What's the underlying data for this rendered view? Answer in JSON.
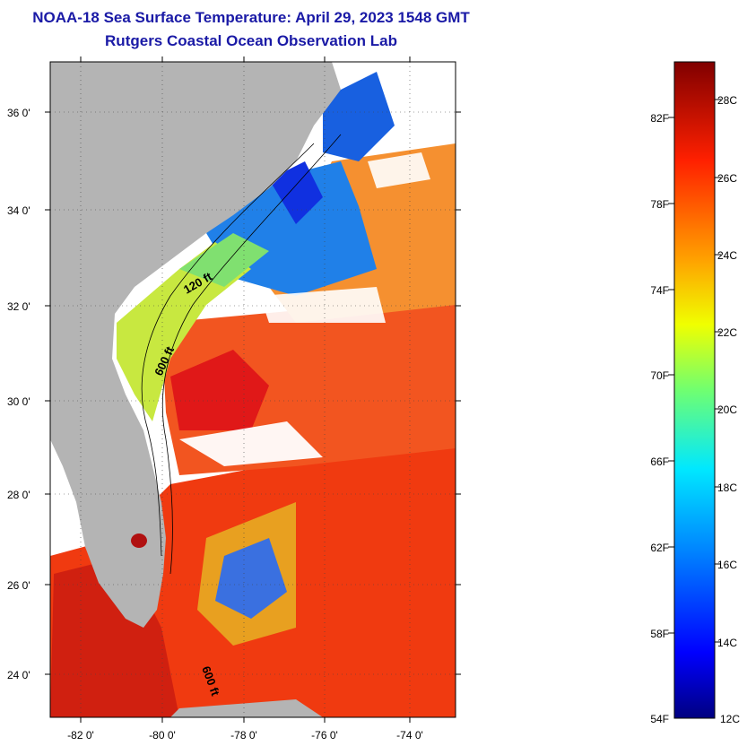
{
  "title": "NOAA-18 Sea Surface Temperature:  April 29, 2023 1548 GMT",
  "subtitle": "Rutgers Coastal Ocean Observation Lab",
  "map": {
    "lat_range": [
      23,
      37
    ],
    "lon_range": [
      -83,
      -73
    ],
    "lat_ticks": [
      "24 0'",
      "26 0'",
      "28 0'",
      "30 0'",
      "32 0'",
      "34 0'",
      "36 0'"
    ],
    "lon_ticks": [
      "-82 0'",
      "-80 0'",
      "-78 0'",
      "-76 0'",
      "-74 0'"
    ],
    "contour_labels": [
      "120 ft",
      "600 ft",
      "600 ft"
    ],
    "land_color": "#b4b4b4",
    "cloud_color": "#ffffff"
  },
  "colorbar": {
    "fahrenheit_labels": [
      "82F",
      "78F",
      "74F",
      "70F",
      "66F",
      "62F",
      "58F",
      "54F"
    ],
    "celsius_labels": [
      "28C",
      "26C",
      "24C",
      "22C",
      "20C",
      "18C",
      "16C",
      "14C",
      "12C"
    ],
    "colors": [
      "#000080",
      "#0000ff",
      "#0080ff",
      "#00ffff",
      "#80ff80",
      "#ffff00",
      "#ff8000",
      "#ff0000",
      "#800000"
    ]
  }
}
